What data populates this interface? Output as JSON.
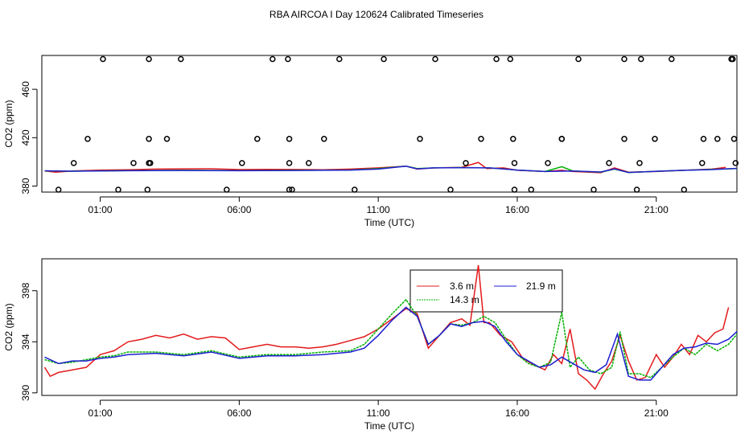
{
  "title": "RBA AIRCOA I  Day 120624  Calibrated Timeseries",
  "chart_data": [
    {
      "type": "line",
      "xlabel": "Time (UTC)",
      "ylabel": "CO2 (ppm)",
      "xlim": [
        -1.1,
        23.9
      ],
      "ylim": [
        375,
        488
      ],
      "x_ticks": [
        1,
        6,
        11,
        16,
        21
      ],
      "x_tick_labels": [
        "01:00",
        "06:00",
        "11:00",
        "16:00",
        "21:00"
      ],
      "y_ticks": [
        380,
        420,
        460
      ],
      "y_tick_labels": [
        "380",
        "420",
        "460"
      ],
      "grid": false,
      "legend": false,
      "series": [
        {
          "color": "#e31a1c",
          "values_x": [
            -1,
            -0.6,
            0,
            1,
            2,
            3,
            4,
            5,
            6,
            7,
            8,
            9,
            10,
            11,
            12,
            12.4,
            13,
            14,
            14.6,
            14.9,
            15.5,
            16,
            17,
            17.6,
            18,
            19,
            19.5,
            20,
            21,
            22,
            23,
            23.5
          ],
          "values_y": [
            392.5,
            391.5,
            392.5,
            393.2,
            393.5,
            394.0,
            394.2,
            394.3,
            393.6,
            393.8,
            393.7,
            393.5,
            394.0,
            395.0,
            396.5,
            394.0,
            395.0,
            395.5,
            399.5,
            394.5,
            395.0,
            393.0,
            392.0,
            393.0,
            392.0,
            391.0,
            395.0,
            391.5,
            392.0,
            393.0,
            394.0,
            395.5
          ]
        },
        {
          "color": "#00b000",
          "values_x": [
            -1,
            0,
            2,
            4,
            6,
            8,
            10,
            11,
            12,
            12.4,
            13,
            14,
            15,
            16,
            17,
            17.6,
            18,
            19,
            19.5,
            20,
            21,
            22,
            23,
            23.9
          ],
          "values_y": [
            392.5,
            392.3,
            392.8,
            393.0,
            392.8,
            393.0,
            393.3,
            394.5,
            396.5,
            394.5,
            395.0,
            395.3,
            395.0,
            393.2,
            392.0,
            396.0,
            392.5,
            391.5,
            394.0,
            391.2,
            392.2,
            393.0,
            393.8,
            394.5
          ]
        },
        {
          "color": "#1f1fd0",
          "values_x": [
            -1,
            0,
            2,
            4,
            6,
            8,
            10,
            11,
            12,
            12.4,
            13,
            14,
            15,
            16,
            17,
            18,
            19,
            19.5,
            20,
            21,
            22,
            23,
            23.9
          ],
          "values_y": [
            392.6,
            392.3,
            392.7,
            392.9,
            392.7,
            392.9,
            393.2,
            394.0,
            396.4,
            394.2,
            395.0,
            395.2,
            395.0,
            393.2,
            392.0,
            392.4,
            391.6,
            394.2,
            391.2,
            392.2,
            393.0,
            393.6,
            394.6
          ]
        }
      ],
      "points": {
        "shape": "open-circle",
        "x": [
          -0.5,
          0.05,
          0.55,
          1.1,
          1.65,
          2.2,
          2.7,
          2.75,
          2.75,
          2.75,
          2.8,
          3.4,
          3.9,
          5.55,
          6.1,
          6.65,
          7.2,
          7.75,
          7.8,
          7.8,
          7.8,
          7.9,
          8.5,
          9.05,
          9.6,
          10.15,
          11.2,
          12.5,
          13.05,
          13.6,
          14.15,
          14.7,
          15.25,
          15.75,
          15.85,
          15.9,
          15.9,
          16.5,
          17.1,
          17.6,
          17.6,
          18.2,
          18.75,
          19.3,
          19.85,
          19.85,
          20.3,
          20.4,
          20.45,
          20.95,
          21.55,
          22.0,
          22.65,
          22.7,
          23.2,
          23.7,
          23.75,
          23.8,
          23.85
        ],
        "y": [
          377,
          399,
          419,
          485,
          377,
          399,
          377,
          399,
          419,
          485,
          399,
          419,
          485,
          377,
          399,
          419,
          485,
          485,
          419,
          399,
          377,
          377,
          399,
          419,
          485,
          377,
          485,
          419,
          485,
          377,
          399,
          419,
          485,
          485,
          419,
          399,
          377,
          377,
          399,
          419,
          419,
          485,
          377,
          399,
          419,
          485,
          377,
          399,
          485,
          419,
          485,
          377,
          399,
          419,
          419,
          485,
          485,
          419,
          399
        ]
      }
    },
    {
      "type": "line",
      "xlabel": "Time (UTC)",
      "ylabel": "CO2 (ppm)",
      "xlim": [
        -1.1,
        23.9
      ],
      "ylim": [
        389.8,
        400.5
      ],
      "x_ticks": [
        1,
        6,
        11,
        16,
        21
      ],
      "x_tick_labels": [
        "01:00",
        "06:00",
        "11:00",
        "16:00",
        "21:00"
      ],
      "y_ticks": [
        390,
        394,
        398
      ],
      "y_tick_labels": [
        "390",
        "394",
        "398"
      ],
      "grid": false,
      "legend_placement": "top-center",
      "series": [
        {
          "name": "3.6 m",
          "color": "#e31a1c",
          "x": [
            -1,
            -0.8,
            -0.5,
            0,
            0.5,
            1,
            1.5,
            2,
            2.5,
            3,
            3.5,
            4,
            4.5,
            5,
            5.5,
            6,
            6.5,
            7,
            7.5,
            8,
            8.5,
            9,
            9.5,
            10,
            10.5,
            11,
            11.5,
            12,
            12.4,
            12.8,
            13.2,
            13.6,
            14,
            14.3,
            14.6,
            14.8,
            15,
            15.4,
            15.8,
            16.2,
            16.6,
            17,
            17.3,
            17.6,
            17.9,
            18.2,
            18.5,
            18.8,
            19.1,
            19.4,
            19.7,
            20,
            20.3,
            20.6,
            21,
            21.3,
            21.6,
            21.9,
            22.2,
            22.5,
            22.8,
            23.1,
            23.4,
            23.6
          ],
          "y": [
            392.0,
            391.3,
            391.6,
            391.8,
            392.0,
            393.0,
            393.3,
            394.0,
            394.2,
            394.5,
            394.3,
            394.6,
            394.2,
            394.4,
            394.3,
            393.4,
            393.6,
            393.8,
            393.6,
            393.6,
            393.5,
            393.6,
            393.8,
            394.1,
            394.4,
            395.0,
            395.8,
            396.6,
            396.2,
            393.5,
            394.5,
            395.5,
            395.8,
            395.3,
            400.0,
            395.5,
            395.5,
            394.5,
            394.0,
            392.7,
            392.2,
            391.8,
            393.0,
            392.3,
            395.0,
            391.5,
            391.0,
            390.3,
            391.5,
            392.5,
            394.5,
            392.5,
            391.0,
            391.2,
            393.0,
            392.0,
            392.8,
            393.8,
            393.0,
            394.5,
            394.0,
            394.7,
            395.0,
            396.7
          ]
        },
        {
          "name": "14.3 m",
          "color": "#00b000",
          "x": [
            -1,
            -0.5,
            0,
            0.5,
            1,
            1.5,
            2,
            3,
            4,
            5,
            6,
            7,
            8,
            9,
            10,
            10.5,
            11,
            11.5,
            12,
            12.4,
            12.8,
            13.2,
            13.6,
            14,
            14.4,
            14.8,
            15.2,
            15.6,
            16,
            16.4,
            16.8,
            17.2,
            17.6,
            17.9,
            18.2,
            18.6,
            19.0,
            19.4,
            19.7,
            20,
            20.4,
            20.8,
            21.2,
            21.6,
            22,
            22.4,
            22.8,
            23.2,
            23.6,
            23.9
          ],
          "y": [
            392.6,
            392.3,
            392.4,
            392.6,
            392.8,
            392.9,
            393.2,
            393.2,
            393.0,
            393.3,
            392.8,
            393.0,
            393.0,
            393.2,
            393.3,
            393.8,
            395.0,
            396.2,
            397.3,
            396.0,
            393.8,
            394.5,
            395.4,
            395.3,
            395.5,
            396.0,
            395.5,
            394.2,
            393.0,
            392.3,
            392.0,
            392.4,
            396.3,
            392.0,
            392.8,
            391.8,
            391.5,
            392.0,
            394.8,
            391.5,
            391.5,
            391.2,
            392.0,
            392.8,
            393.5,
            393.0,
            393.8,
            393.3,
            393.8,
            394.6
          ]
        },
        {
          "name": "21.9 m",
          "color": "#1f1fd0",
          "x": [
            -1,
            -0.5,
            0,
            0.5,
            1,
            1.5,
            2,
            3,
            4,
            5,
            6,
            7,
            8,
            9,
            10,
            10.5,
            11,
            11.5,
            12,
            12.4,
            12.8,
            13.2,
            13.6,
            14,
            14.4,
            14.8,
            15.2,
            15.6,
            16,
            16.4,
            16.8,
            17.2,
            17.6,
            18,
            18.4,
            18.8,
            19.2,
            19.6,
            20,
            20.4,
            20.8,
            21.2,
            21.6,
            22,
            22.4,
            22.8,
            23.2,
            23.6,
            23.9
          ],
          "y": [
            392.8,
            392.3,
            392.5,
            392.5,
            392.7,
            392.8,
            393.0,
            393.1,
            392.9,
            393.2,
            392.7,
            392.9,
            392.9,
            393.0,
            393.2,
            393.5,
            394.5,
            395.7,
            396.7,
            396.0,
            393.8,
            394.5,
            395.4,
            395.2,
            395.5,
            395.6,
            395.2,
            394.0,
            393.0,
            392.5,
            392.0,
            392.2,
            392.8,
            392.3,
            391.8,
            391.6,
            392.2,
            394.6,
            391.3,
            391.0,
            391.0,
            392.0,
            393.0,
            393.5,
            393.6,
            393.9,
            393.8,
            394.2,
            394.8
          ]
        }
      ]
    }
  ]
}
